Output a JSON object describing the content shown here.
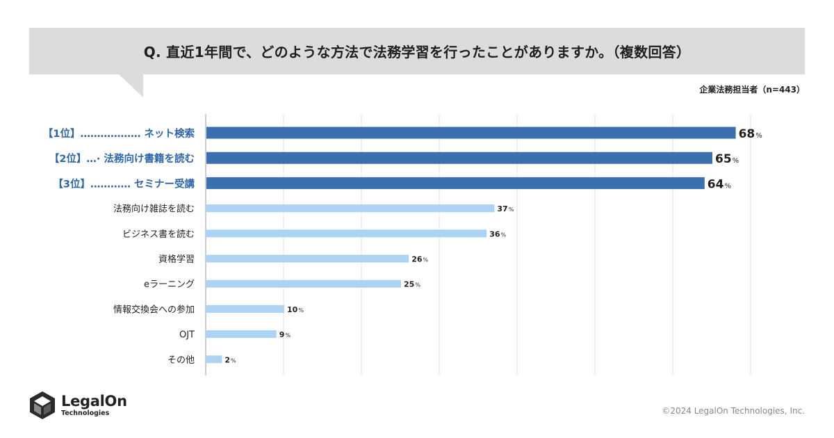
{
  "question": "Q. 直近1年間で、どのような方法で法務学習を行ったことがありますか。（複数回答）",
  "respondents": "企業法務担当者（n=443）",
  "unit": "%",
  "colors": {
    "top": "#3a70ad",
    "rest": "#add3f4",
    "label_top": "#2f66a8",
    "grid": "#e2e2e2",
    "axis": "#999999"
  },
  "chart_data": {
    "type": "bar",
    "orientation": "horizontal",
    "categories": [
      "【1位】……………… ネット検索",
      "【2位】…· 法務向け書籍を読む",
      "【3位】………… セミナー受講",
      "法務向け雑誌を読む",
      "ビジネス書を読む",
      "資格学習",
      "eラーニング",
      "情報交換会への参加",
      "OJT",
      "その他"
    ],
    "values": [
      68,
      65,
      64,
      37,
      36,
      26,
      25,
      10,
      9,
      2
    ],
    "highlight_top": 3,
    "xlim": [
      0,
      70
    ],
    "grid": true
  },
  "footer": {
    "logo_name": "LegalOn",
    "logo_sub": "Technologies",
    "logo_icon": "legalon-hexagon-icon",
    "copyright": "©2024 LegalOn Technologies, Inc."
  }
}
